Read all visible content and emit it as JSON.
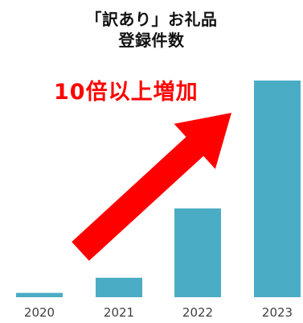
{
  "chart_data": {
    "type": "bar",
    "title_lines": [
      "「訳あり」お礼品",
      "登録件数"
    ],
    "categories": [
      "2020",
      "2021",
      "2022",
      "2023"
    ],
    "values": [
      2,
      9,
      41,
      100
    ],
    "ylim": [
      0,
      100
    ],
    "xlabel": "",
    "ylabel": "",
    "grid": false,
    "legend": "none",
    "annotation": "10倍以上増加",
    "colors": {
      "bar": "#4aacc5",
      "arrow": "#ff0000",
      "annotation": "#ff0000",
      "title": "#111111",
      "tick_label": "#404040"
    }
  }
}
